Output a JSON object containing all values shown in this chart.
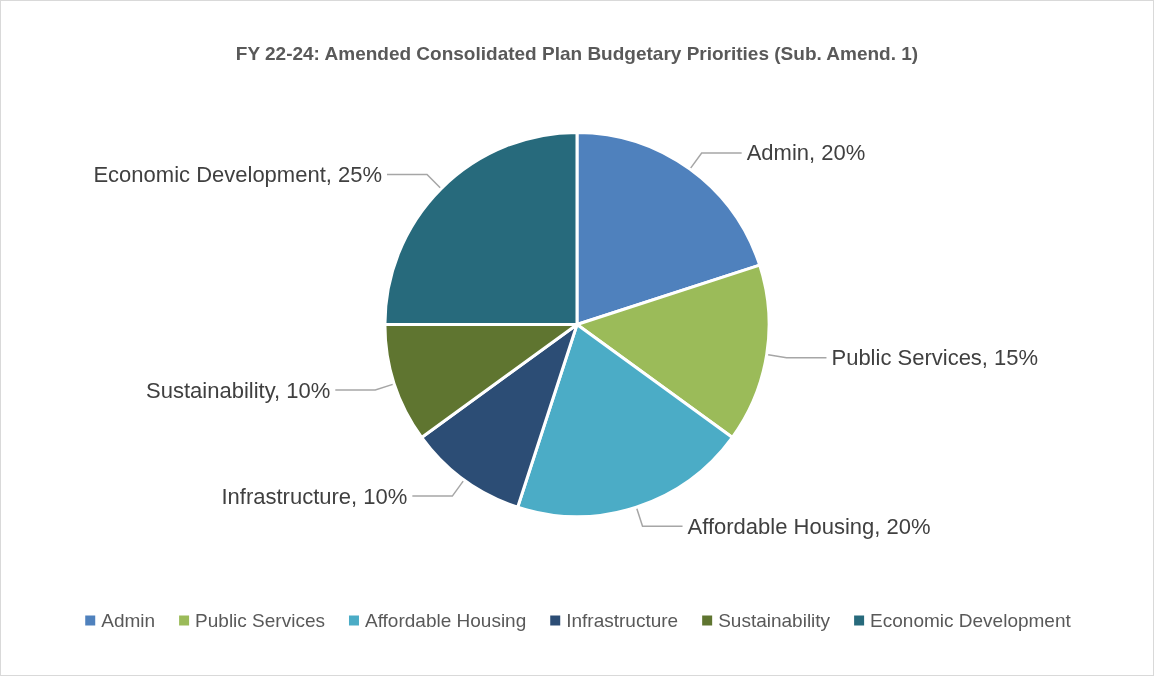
{
  "chart_data": {
    "type": "pie",
    "title": "FY 22-24: Amended Consolidated Plan Budgetary Priorities (Sub. Amend. 1)",
    "categories": [
      "Admin",
      "Public Services",
      "Affordable Housing",
      "Infrastructure",
      "Sustainability",
      "Economic Development"
    ],
    "values": [
      20,
      15,
      20,
      10,
      10,
      25
    ],
    "value_labels": [
      "Admin, 20%",
      "Public Services, 15%",
      "Affordable Housing, 20%",
      "Infrastructure, 10%",
      "Sustainability, 10%",
      "Economic Development, 25%"
    ],
    "colors": [
      "#4f81bd",
      "#9bbb59",
      "#4bacc6",
      "#2c4d75",
      "#5f7530",
      "#276a7c"
    ],
    "legend": "bottom"
  }
}
